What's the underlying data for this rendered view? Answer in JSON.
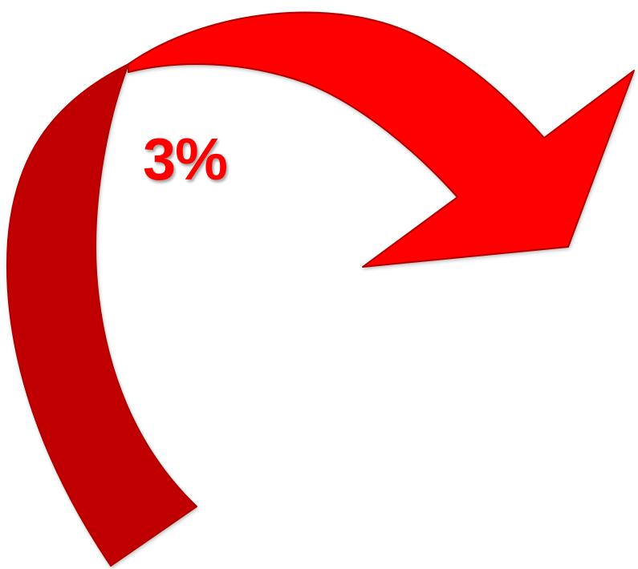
{
  "label": {
    "text": "3%"
  },
  "colors": {
    "arrow_front": "#FF0000",
    "arrow_back": "#C00000",
    "arrow_outline": "#B00000",
    "label": "#FF0000"
  },
  "icon": "curved-arrow-icon"
}
